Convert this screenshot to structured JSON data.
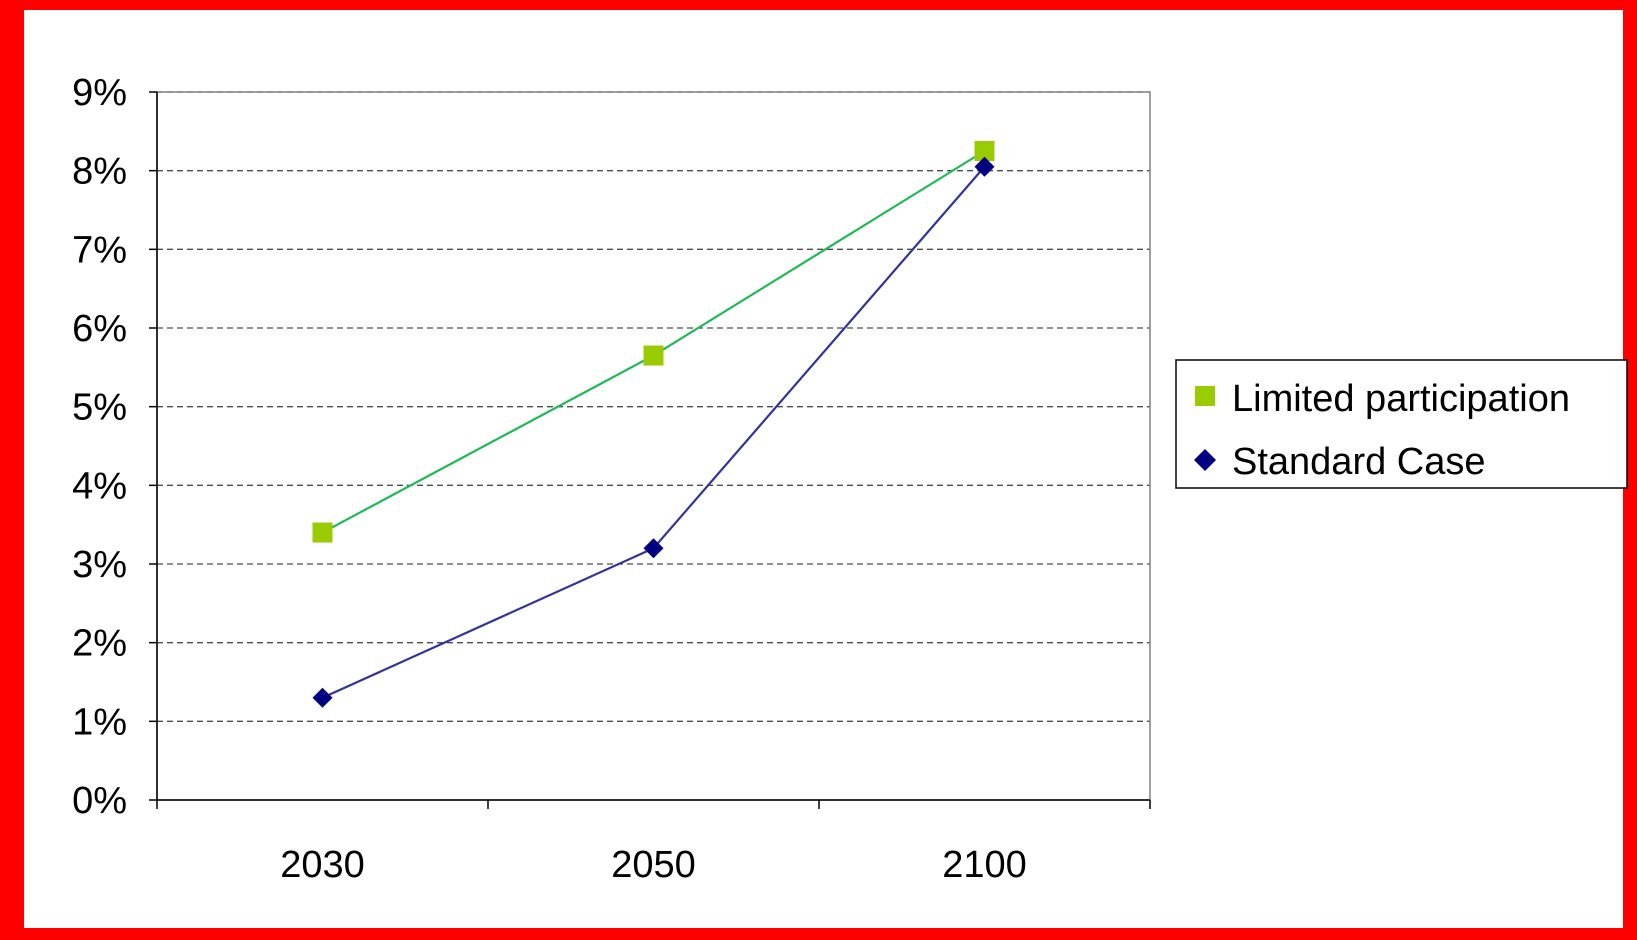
{
  "chart_data": {
    "type": "line",
    "categories": [
      "2030",
      "2050",
      "2100"
    ],
    "series": [
      {
        "name": "Limited participation",
        "values": [
          3.4,
          5.65,
          8.25
        ],
        "color": "#1db954",
        "marker_color": "#99cc00",
        "marker": "square"
      },
      {
        "name": "Standard Case",
        "values": [
          1.3,
          3.2,
          8.05
        ],
        "color": "#333399",
        "marker_color": "#000080",
        "marker": "diamond"
      }
    ],
    "y_ticks": [
      "0%",
      "1%",
      "2%",
      "3%",
      "4%",
      "5%",
      "6%",
      "7%",
      "8%",
      "9%"
    ],
    "ylim": [
      0,
      9
    ],
    "yunit": "%",
    "grid": "horizontal dashed",
    "legend_position": "right",
    "frame_color": "#ff0000"
  }
}
